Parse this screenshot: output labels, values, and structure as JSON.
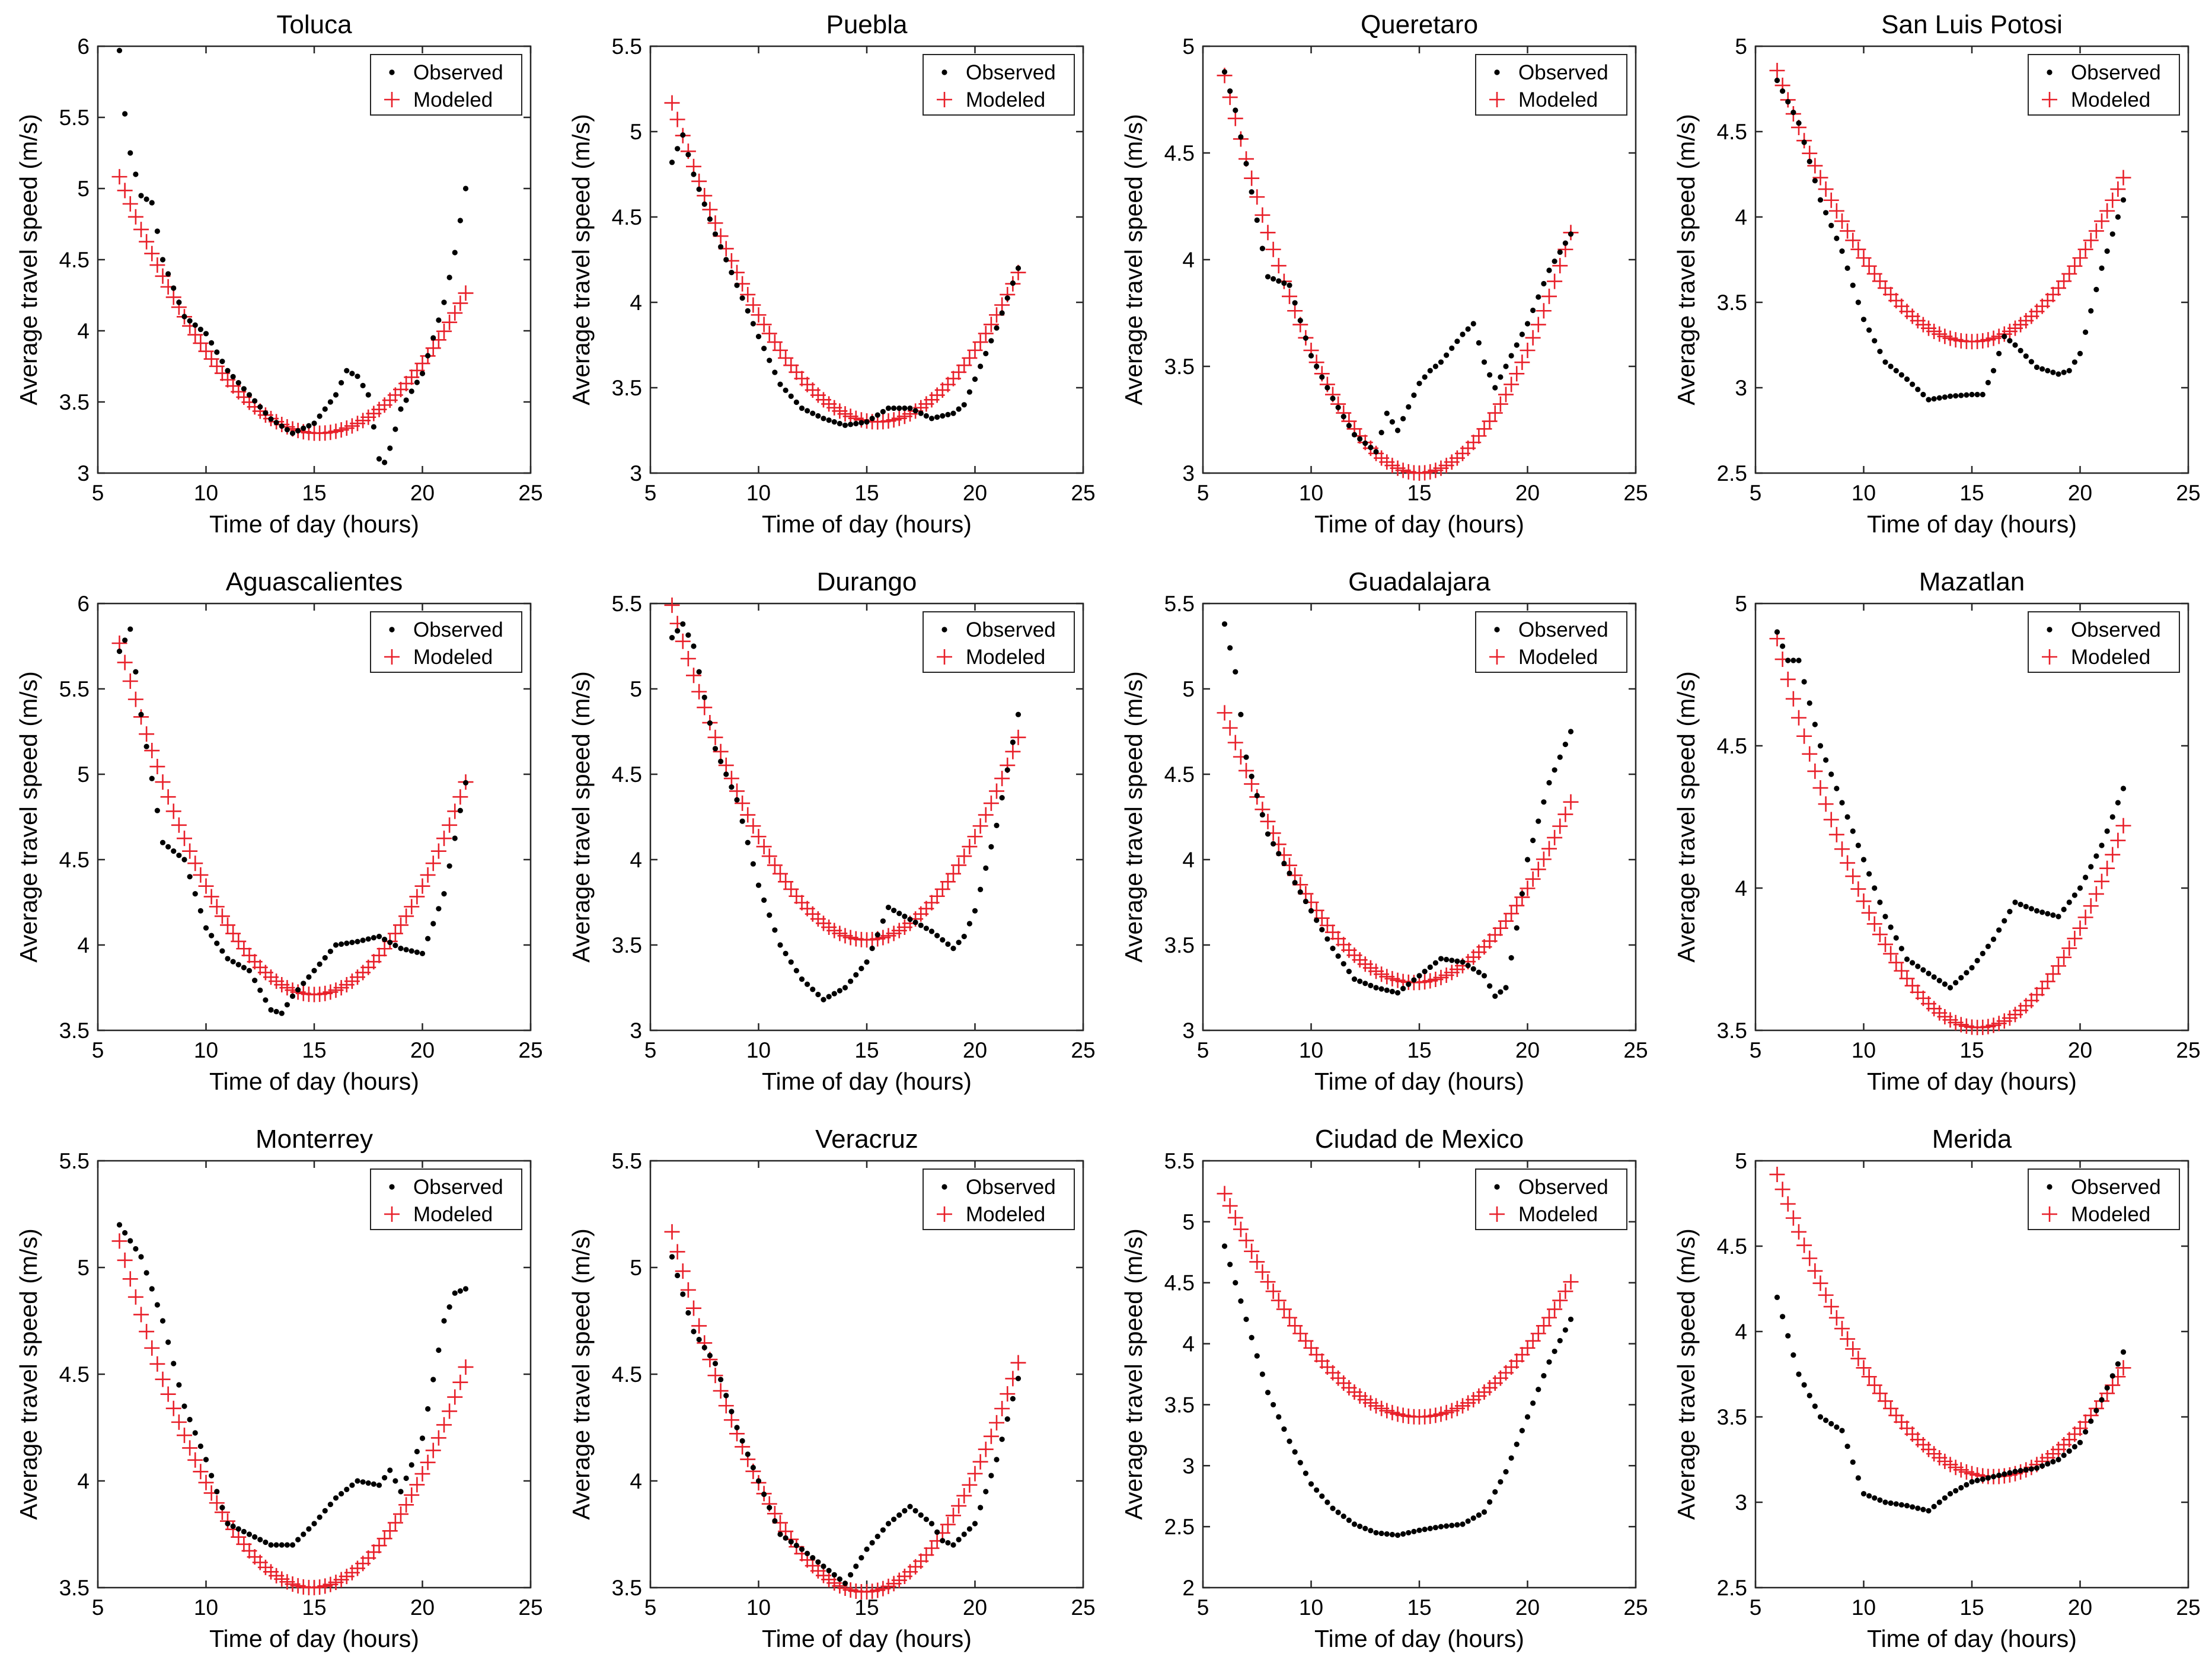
{
  "legend": {
    "observed": "Observed",
    "modeled": "Modeled"
  },
  "axis": {
    "xlabel": "Time of day (hours)",
    "ylabel": "Average travel speed (m/s)"
  },
  "colors": {
    "observed": "#000000",
    "modeled": "#e8202a",
    "axis": "#262626",
    "background": "#ffffff"
  },
  "chart_data": [
    {
      "type": "scatter",
      "title": "Toluca",
      "xlim": [
        5,
        25
      ],
      "ylim": [
        3,
        6
      ],
      "xticks": [
        "5",
        "10",
        "15",
        "20",
        "25"
      ],
      "yticks": [
        "3",
        "3.5",
        "4",
        "4.5",
        "5",
        "5.5",
        "6"
      ],
      "model": {
        "a": 0.0213,
        "h": 15.2,
        "k": 3.28
      },
      "x_start": 6,
      "x_end": 22,
      "observed_keys": [
        [
          6,
          5.97
        ],
        [
          6.2,
          5.58
        ],
        [
          6.5,
          5.25
        ],
        [
          7,
          4.95
        ],
        [
          7.5,
          4.9
        ],
        [
          8,
          4.5
        ],
        [
          9,
          4.1
        ],
        [
          10,
          3.98
        ],
        [
          11,
          3.72
        ],
        [
          12,
          3.55
        ],
        [
          13,
          3.38
        ],
        [
          14,
          3.28
        ],
        [
          15,
          3.35
        ],
        [
          16,
          3.55
        ],
        [
          16.5,
          3.72
        ],
        [
          17,
          3.68
        ],
        [
          17.5,
          3.55
        ],
        [
          18,
          3.1
        ],
        [
          18.3,
          3.07
        ],
        [
          18.7,
          3.28
        ],
        [
          19,
          3.45
        ],
        [
          20,
          3.7
        ],
        [
          21,
          4.2
        ],
        [
          21.5,
          4.55
        ],
        [
          22,
          5.0
        ]
      ]
    },
    {
      "type": "scatter",
      "title": "Puebla",
      "xlim": [
        5,
        25
      ],
      "ylim": [
        3,
        5.5
      ],
      "xticks": [
        "5",
        "10",
        "15",
        "20",
        "25"
      ],
      "yticks": [
        "3",
        "3.5",
        "4",
        "4.5",
        "5",
        "5.5"
      ],
      "model": {
        "a": 0.0207,
        "h": 15.5,
        "k": 3.3
      },
      "x_start": 6,
      "x_end": 22,
      "observed_keys": [
        [
          6,
          4.82
        ],
        [
          6.5,
          4.98
        ],
        [
          7,
          4.75
        ],
        [
          8,
          4.4
        ],
        [
          9,
          4.1
        ],
        [
          10,
          3.8
        ],
        [
          11,
          3.52
        ],
        [
          12,
          3.38
        ],
        [
          13,
          3.32
        ],
        [
          14,
          3.28
        ],
        [
          15,
          3.3
        ],
        [
          16,
          3.38
        ],
        [
          17,
          3.38
        ],
        [
          18,
          3.32
        ],
        [
          19,
          3.35
        ],
        [
          19.5,
          3.4
        ],
        [
          20,
          3.55
        ],
        [
          21,
          3.85
        ],
        [
          22,
          4.2
        ]
      ]
    },
    {
      "type": "scatter",
      "title": "Queretaro",
      "xlim": [
        5,
        25
      ],
      "ylim": [
        3,
        5
      ],
      "xticks": [
        "5",
        "10",
        "15",
        "20",
        "25"
      ],
      "yticks": [
        "3",
        "3.5",
        "4",
        "4.5",
        "5"
      ],
      "model": {
        "a": 0.023,
        "h": 15.0,
        "k": 3.0
      },
      "x_start": 6,
      "x_end": 22,
      "observed_keys": [
        [
          6,
          4.88
        ],
        [
          6.5,
          4.7
        ],
        [
          7,
          4.45
        ],
        [
          8,
          3.92
        ],
        [
          9,
          3.88
        ],
        [
          10,
          3.55
        ],
        [
          11,
          3.35
        ],
        [
          12,
          3.18
        ],
        [
          13,
          3.1
        ],
        [
          13.5,
          3.28
        ],
        [
          14,
          3.2
        ],
        [
          15,
          3.42
        ],
        [
          15.5,
          3.48
        ],
        [
          16,
          3.52
        ],
        [
          17,
          3.65
        ],
        [
          17.5,
          3.7
        ],
        [
          18,
          3.52
        ],
        [
          18.5,
          3.4
        ],
        [
          19,
          3.5
        ],
        [
          20,
          3.7
        ],
        [
          21,
          3.95
        ],
        [
          22,
          4.12
        ]
      ]
    },
    {
      "type": "scatter",
      "title": "San Luis Potosi",
      "xlim": [
        5,
        25
      ],
      "ylim": [
        2.5,
        5
      ],
      "xticks": [
        "5",
        "10",
        "15",
        "20",
        "25"
      ],
      "yticks": [
        "2.5",
        "3",
        "3.5",
        "4",
        "4.5",
        "5"
      ],
      "model": {
        "a": 0.0196,
        "h": 15.0,
        "k": 3.27
      },
      "x_start": 6,
      "x_end": 22,
      "observed_keys": [
        [
          6,
          4.8
        ],
        [
          7,
          4.55
        ],
        [
          8,
          4.1
        ],
        [
          9,
          3.8
        ],
        [
          10,
          3.4
        ],
        [
          11,
          3.15
        ],
        [
          12,
          3.05
        ],
        [
          13,
          2.93
        ],
        [
          14,
          2.95
        ],
        [
          15,
          2.96
        ],
        [
          15.5,
          2.96
        ],
        [
          16,
          3.1
        ],
        [
          16.5,
          3.3
        ],
        [
          17,
          3.25
        ],
        [
          18,
          3.12
        ],
        [
          19,
          3.08
        ],
        [
          19.5,
          3.1
        ],
        [
          20,
          3.2
        ],
        [
          21,
          3.7
        ],
        [
          22,
          4.1
        ]
      ]
    },
    {
      "type": "scatter",
      "title": "Aguascalientes",
      "xlim": [
        5,
        25
      ],
      "ylim": [
        3.5,
        6
      ],
      "xticks": [
        "5",
        "10",
        "15",
        "20",
        "25"
      ],
      "yticks": [
        "3.5",
        "4",
        "4.5",
        "5",
        "5.5",
        "6"
      ],
      "model": {
        "a": 0.0254,
        "h": 15.0,
        "k": 3.71
      },
      "x_start": 6,
      "x_end": 22,
      "observed_keys": [
        [
          6,
          5.72
        ],
        [
          6.5,
          5.85
        ],
        [
          7,
          5.35
        ],
        [
          8,
          4.6
        ],
        [
          9,
          4.5
        ],
        [
          10,
          4.1
        ],
        [
          11,
          3.92
        ],
        [
          12,
          3.85
        ],
        [
          13,
          3.62
        ],
        [
          13.5,
          3.6
        ],
        [
          14,
          3.7
        ],
        [
          15,
          3.85
        ],
        [
          16,
          4.0
        ],
        [
          17,
          4.02
        ],
        [
          18,
          4.05
        ],
        [
          19,
          3.98
        ],
        [
          20,
          3.95
        ],
        [
          21,
          4.3
        ],
        [
          22,
          4.95
        ]
      ]
    },
    {
      "type": "scatter",
      "title": "Durango",
      "xlim": [
        5,
        25
      ],
      "ylim": [
        3,
        5.5
      ],
      "xticks": [
        "5",
        "10",
        "15",
        "20",
        "25"
      ],
      "yticks": [
        "3",
        "3.5",
        "4",
        "4.5",
        "5",
        "5.5"
      ],
      "model": {
        "a": 0.0242,
        "h": 15.0,
        "k": 3.53
      },
      "x_start": 6,
      "x_end": 22,
      "observed_keys": [
        [
          6,
          5.3
        ],
        [
          6.5,
          5.38
        ],
        [
          7,
          5.25
        ],
        [
          8,
          4.65
        ],
        [
          9,
          4.35
        ],
        [
          10,
          3.85
        ],
        [
          11,
          3.5
        ],
        [
          12,
          3.3
        ],
        [
          13,
          3.18
        ],
        [
          14,
          3.25
        ],
        [
          15,
          3.4
        ],
        [
          16,
          3.72
        ],
        [
          17,
          3.65
        ],
        [
          18,
          3.58
        ],
        [
          19,
          3.48
        ],
        [
          19.5,
          3.55
        ],
        [
          20,
          3.7
        ],
        [
          21,
          4.2
        ],
        [
          22,
          4.85
        ]
      ]
    },
    {
      "type": "scatter",
      "title": "Guadalajara",
      "xlim": [
        5,
        25
      ],
      "ylim": [
        3,
        5.5
      ],
      "xticks": [
        "5",
        "10",
        "15",
        "20",
        "25"
      ],
      "yticks": [
        "3",
        "3.5",
        "4",
        "4.5",
        "5",
        "5.5"
      ],
      "model": {
        "a": 0.0204,
        "h": 14.8,
        "k": 3.28
      },
      "x_start": 6,
      "x_end": 22,
      "observed_keys": [
        [
          6,
          5.38
        ],
        [
          6.5,
          5.1
        ],
        [
          7,
          4.6
        ],
        [
          8,
          4.15
        ],
        [
          9,
          3.92
        ],
        [
          10,
          3.7
        ],
        [
          11,
          3.48
        ],
        [
          12,
          3.3
        ],
        [
          13,
          3.25
        ],
        [
          14,
          3.22
        ],
        [
          15,
          3.32
        ],
        [
          16,
          3.42
        ],
        [
          17,
          3.4
        ],
        [
          18,
          3.32
        ],
        [
          18.5,
          3.2
        ],
        [
          19,
          3.25
        ],
        [
          19.5,
          3.6
        ],
        [
          20,
          4.0
        ],
        [
          21,
          4.45
        ],
        [
          22,
          4.75
        ]
      ]
    },
    {
      "type": "scatter",
      "title": "Mazatlan",
      "xlim": [
        5,
        25
      ],
      "ylim": [
        3.5,
        5
      ],
      "xticks": [
        "5",
        "10",
        "15",
        "20",
        "25"
      ],
      "yticks": [
        "3.5",
        "4",
        "4.5",
        "5"
      ],
      "model": {
        "a": 0.0158,
        "h": 15.3,
        "k": 3.51
      },
      "x_start": 6,
      "x_end": 22,
      "observed_keys": [
        [
          6,
          4.9
        ],
        [
          6.5,
          4.8
        ],
        [
          7,
          4.8
        ],
        [
          8,
          4.5
        ],
        [
          9,
          4.3
        ],
        [
          10,
          4.1
        ],
        [
          11,
          3.9
        ],
        [
          12,
          3.75
        ],
        [
          13,
          3.7
        ],
        [
          14,
          3.65
        ],
        [
          15,
          3.72
        ],
        [
          16,
          3.82
        ],
        [
          17,
          3.95
        ],
        [
          18,
          3.92
        ],
        [
          19,
          3.9
        ],
        [
          20,
          4.0
        ],
        [
          21,
          4.15
        ],
        [
          22,
          4.35
        ]
      ]
    },
    {
      "type": "scatter",
      "title": "Monterrey",
      "xlim": [
        5,
        25
      ],
      "ylim": [
        3.5,
        5.5
      ],
      "xticks": [
        "5",
        "10",
        "15",
        "20",
        "25"
      ],
      "yticks": [
        "3.5",
        "4",
        "4.5",
        "5",
        "5.5"
      ],
      "model": {
        "a": 0.0205,
        "h": 14.9,
        "k": 3.5
      },
      "x_start": 6,
      "x_end": 22,
      "observed_keys": [
        [
          6,
          5.2
        ],
        [
          7,
          5.05
        ],
        [
          8,
          4.75
        ],
        [
          9,
          4.35
        ],
        [
          10,
          4.1
        ],
        [
          11,
          3.8
        ],
        [
          12,
          3.75
        ],
        [
          13,
          3.7
        ],
        [
          14,
          3.7
        ],
        [
          15,
          3.8
        ],
        [
          16,
          3.92
        ],
        [
          17,
          4.0
        ],
        [
          18,
          3.98
        ],
        [
          18.5,
          4.05
        ],
        [
          19,
          3.95
        ],
        [
          20,
          4.2
        ],
        [
          21,
          4.75
        ],
        [
          21.5,
          4.88
        ],
        [
          22,
          4.9
        ]
      ]
    },
    {
      "type": "scatter",
      "title": "Veracruz",
      "xlim": [
        5,
        25
      ],
      "ylim": [
        3.5,
        5.5
      ],
      "xticks": [
        "5",
        "10",
        "15",
        "20",
        "25"
      ],
      "yticks": [
        "3.5",
        "4",
        "4.5",
        "5",
        "5.5"
      ],
      "model": {
        "a": 0.0213,
        "h": 14.9,
        "k": 3.48
      },
      "x_start": 6,
      "x_end": 22,
      "observed_keys": [
        [
          6,
          5.05
        ],
        [
          7,
          4.7
        ],
        [
          8,
          4.55
        ],
        [
          9,
          4.25
        ],
        [
          10,
          4.0
        ],
        [
          11,
          3.75
        ],
        [
          12,
          3.68
        ],
        [
          13,
          3.6
        ],
        [
          14,
          3.52
        ],
        [
          15,
          3.68
        ],
        [
          16,
          3.8
        ],
        [
          17,
          3.88
        ],
        [
          18,
          3.8
        ],
        [
          18.5,
          3.72
        ],
        [
          19,
          3.7
        ],
        [
          20,
          3.8
        ],
        [
          21,
          4.1
        ],
        [
          22,
          4.48
        ]
      ]
    },
    {
      "type": "scatter",
      "title": "Ciudad de Mexico",
      "xlim": [
        5,
        25
      ],
      "ylim": [
        2,
        5.5
      ],
      "xticks": [
        "5",
        "10",
        "15",
        "20",
        "25"
      ],
      "yticks": [
        "2",
        "2.5",
        "3",
        "3.5",
        "4",
        "4.5",
        "5",
        "5.5"
      ],
      "model": {
        "a": 0.0226,
        "h": 15.0,
        "k": 3.4
      },
      "x_start": 6,
      "x_end": 22,
      "observed_keys": [
        [
          6,
          4.8
        ],
        [
          7,
          4.2
        ],
        [
          8,
          3.6
        ],
        [
          9,
          3.2
        ],
        [
          10,
          2.85
        ],
        [
          11,
          2.65
        ],
        [
          12,
          2.52
        ],
        [
          13,
          2.45
        ],
        [
          14,
          2.43
        ],
        [
          15,
          2.47
        ],
        [
          16,
          2.5
        ],
        [
          17,
          2.52
        ],
        [
          18,
          2.62
        ],
        [
          19,
          2.95
        ],
        [
          20,
          3.4
        ],
        [
          21,
          3.85
        ],
        [
          22,
          4.2
        ]
      ]
    },
    {
      "type": "scatter",
      "title": "Merida",
      "xlim": [
        5,
        25
      ],
      "ylim": [
        2.5,
        5
      ],
      "xticks": [
        "5",
        "10",
        "15",
        "20",
        "25"
      ],
      "yticks": [
        "2.5",
        "3",
        "3.5",
        "4",
        "4.5",
        "5"
      ],
      "model": {
        "a": 0.0177,
        "h": 16.0,
        "k": 3.15
      },
      "x_start": 6,
      "x_end": 22,
      "observed_keys": [
        [
          6,
          4.2
        ],
        [
          7,
          3.75
        ],
        [
          8,
          3.5
        ],
        [
          9,
          3.42
        ],
        [
          10,
          3.05
        ],
        [
          11,
          3.0
        ],
        [
          12,
          2.98
        ],
        [
          13,
          2.95
        ],
        [
          14,
          3.05
        ],
        [
          15,
          3.12
        ],
        [
          16,
          3.15
        ],
        [
          17,
          3.18
        ],
        [
          18,
          3.2
        ],
        [
          19,
          3.25
        ],
        [
          20,
          3.35
        ],
        [
          21,
          3.6
        ],
        [
          22,
          3.88
        ]
      ]
    }
  ]
}
